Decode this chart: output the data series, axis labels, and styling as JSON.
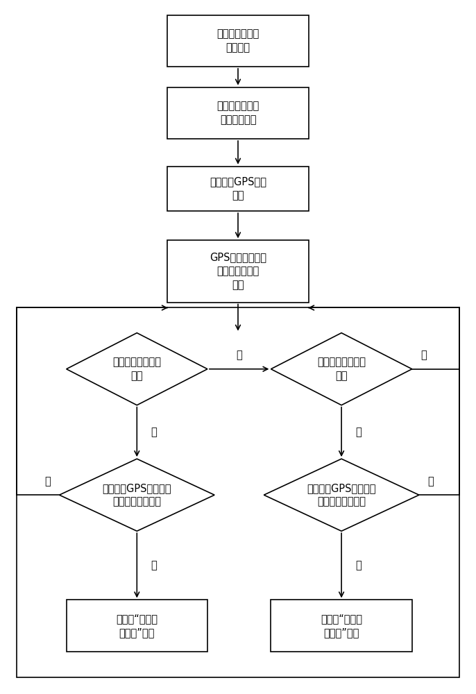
{
  "bg_color": "#ffffff",
  "line_color": "#000000",
  "box_fill": "#ffffff",
  "diamond_fill": "#ffffff",
  "font_size": 11,
  "boxes": [
    {
      "id": "b1",
      "text": "判断车辆偏离进\n出场路线"
    },
    {
      "id": "b2",
      "text": "为每条线路车辆\n订定出场线路"
    },
    {
      "id": "b3",
      "text": "接收车辆GPS位置\n信息"
    },
    {
      "id": "b4",
      "text": "GPS数据去除飘逸\n处理，过滤无效\n数据"
    },
    {
      "id": "b5",
      "text": "报车辆“进场偏\n离路线”报警"
    },
    {
      "id": "b6",
      "text": "报车辆“出场偏\n离路线”报警"
    }
  ],
  "diamonds": [
    {
      "id": "d1",
      "text": "车辆是否收到进场\n指令"
    },
    {
      "id": "d2",
      "text": "车辆是否收到出场\n指令"
    },
    {
      "id": "d3",
      "text": "当前车辆GPS位置信息\n是否偏离进场路线"
    },
    {
      "id": "d4",
      "text": "当前车辆GPS位置信息\n是否偏离出场路线"
    }
  ],
  "yes": "是",
  "no": "否"
}
